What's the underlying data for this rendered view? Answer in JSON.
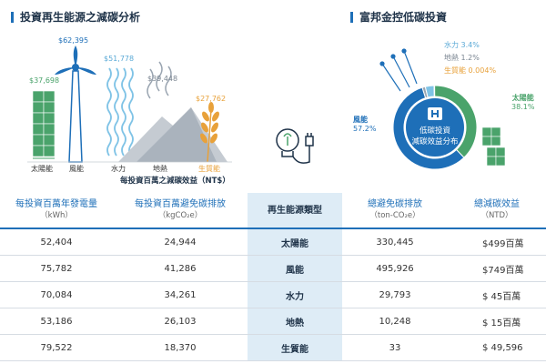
{
  "left": {
    "title": "投資再生能源之減碳分析",
    "caption": "每投資百萬之減碳效益（NT$）",
    "items": [
      {
        "name": "太陽能",
        "amount": "$37,698"
      },
      {
        "name": "風能",
        "amount": "$62,395"
      },
      {
        "name": "水力",
        "amount": "$51,778"
      },
      {
        "name": "地熱",
        "amount": "$39,448"
      },
      {
        "name": "生質能",
        "amount": "$27,762"
      }
    ]
  },
  "right": {
    "title": "富邦金控低碳投資",
    "center_line1": "低碳投資",
    "center_line2": "減碳效益分布",
    "slices": [
      {
        "name": "風能",
        "pct": "57.2%",
        "value": 57.2,
        "color": "#1e6fb8"
      },
      {
        "name": "太陽能",
        "pct": "38.1%",
        "value": 38.1,
        "color": "#4aa36b"
      },
      {
        "name": "水力",
        "pct": "3.4%",
        "value": 3.4,
        "color": "#7fc3e6"
      },
      {
        "name": "地熱",
        "pct": "1.2%",
        "value": 1.2,
        "color": "#9aa5b1"
      },
      {
        "name": "生質能",
        "pct": "0.004%",
        "value": 0.004,
        "color": "#e8a13a"
      }
    ]
  },
  "table": {
    "headers": [
      {
        "label": "每投資百萬年發電量",
        "unit": "（kWh）"
      },
      {
        "label": "每投資百萬避免碳排放",
        "unit": "（kgCO₂e）"
      },
      {
        "label": "再生能源類型",
        "unit": ""
      },
      {
        "label": "總避免碳排放",
        "unit": "（ton-CO₂e）"
      },
      {
        "label": "總減碳效益",
        "unit": "（NTD）"
      }
    ],
    "rows": [
      {
        "kwh": "52,404",
        "kgco2": "24,944",
        "type": "太陽能",
        "ton": "330,445",
        "ntd": "$499百萬"
      },
      {
        "kwh": "75,782",
        "kgco2": "41,286",
        "type": "風能",
        "ton": "495,926",
        "ntd": "$749百萬"
      },
      {
        "kwh": "70,084",
        "kgco2": "34,261",
        "type": "水力",
        "ton": "29,793",
        "ntd": "$  45百萬"
      },
      {
        "kwh": "53,186",
        "kgco2": "26,103",
        "type": "地熱",
        "ton": "10,248",
        "ntd": "$  15百萬"
      },
      {
        "kwh": "79,522",
        "kgco2": "18,370",
        "type": "生質能",
        "ton": "33",
        "ntd": "$  49,596"
      }
    ]
  }
}
